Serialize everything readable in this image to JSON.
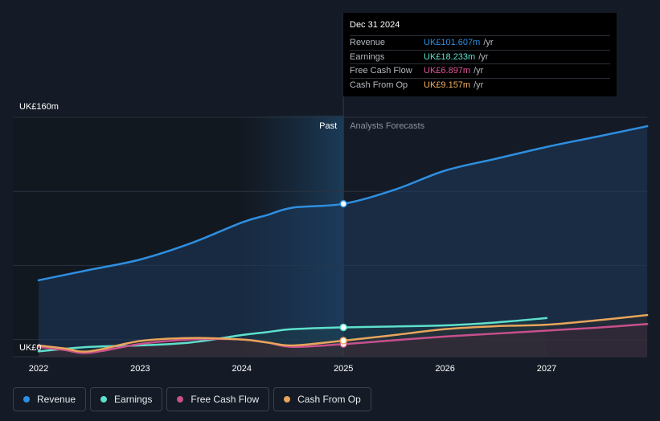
{
  "tooltip": {
    "date": "Dec 31 2024",
    "rows": [
      {
        "label": "Revenue",
        "value": "UK£101.607m",
        "unit": "/yr",
        "color": "#2e8fe0"
      },
      {
        "label": "Earnings",
        "value": "UK£18.233m",
        "unit": "/yr",
        "color": "#5ee0cc"
      },
      {
        "label": "Free Cash Flow",
        "value": "UK£6.897m",
        "unit": "/yr",
        "color": "#e0569a"
      },
      {
        "label": "Cash From Op",
        "value": "UK£9.157m",
        "unit": "/yr",
        "color": "#f0b060"
      }
    ]
  },
  "legend": [
    {
      "label": "Revenue",
      "color": "#2e8fe0"
    },
    {
      "label": "Earnings",
      "color": "#5ee0cc"
    },
    {
      "label": "Free Cash Flow",
      "color": "#c8508c"
    },
    {
      "label": "Cash From Op",
      "color": "#e8a55a"
    }
  ],
  "chart_data": {
    "type": "line",
    "title": "",
    "xlabel": "",
    "ylabel": "",
    "ylim": [
      0,
      160
    ],
    "xlim": [
      2022,
      2027.99
    ],
    "y_tick_labels": [
      "UK£160m",
      "UK£0"
    ],
    "x_ticks": [
      2022,
      2023,
      2024,
      2025,
      2026,
      2027
    ],
    "past_label": "Past",
    "forecast_label": "Analysts Forecasts",
    "divider_x": 2025,
    "series": [
      {
        "name": "Revenue",
        "color": "#2e8fe0",
        "x": [
          2022.0,
          2022.5,
          2023.0,
          2023.5,
          2024.0,
          2024.25,
          2024.5,
          2025.0,
          2025.5,
          2026.0,
          2026.5,
          2027.0,
          2027.5,
          2027.99
        ],
        "y": [
          50,
          57,
          64,
          75,
          89,
          94,
          99,
          101.6,
          111,
          124,
          132,
          140,
          147,
          154
        ]
      },
      {
        "name": "Earnings",
        "color": "#5ee0cc",
        "x": [
          2022.0,
          2022.5,
          2023.0,
          2023.5,
          2024.0,
          2024.25,
          2024.5,
          2025.0,
          2025.5,
          2026.0,
          2026.5,
          2027.0
        ],
        "y": [
          2,
          5,
          6,
          8,
          13,
          15,
          17,
          18.2,
          18.8,
          19.5,
          21.5,
          24.5
        ]
      },
      {
        "name": "Free Cash Flow",
        "color": "#c8508c",
        "x": [
          2022.0,
          2022.25,
          2022.5,
          2023.0,
          2023.5,
          2024.0,
          2024.25,
          2024.5,
          2025.0,
          2025.5,
          2026.0,
          2026.5,
          2027.0,
          2027.5,
          2027.99
        ],
        "y": [
          5,
          3,
          1,
          7,
          10,
          10,
          8,
          5,
          6.9,
          9.5,
          12,
          14,
          16,
          18,
          20.5
        ]
      },
      {
        "name": "Cash From Op",
        "color": "#e8a55a",
        "x": [
          2022.0,
          2022.25,
          2022.5,
          2023.0,
          2023.5,
          2024.0,
          2024.25,
          2024.5,
          2025.0,
          2025.5,
          2026.0,
          2026.5,
          2027.0,
          2027.5,
          2027.99
        ],
        "y": [
          6,
          4,
          2,
          9,
          11,
          10,
          8,
          6,
          9.2,
          13,
          17,
          19,
          20,
          23,
          26.5
        ]
      }
    ]
  }
}
